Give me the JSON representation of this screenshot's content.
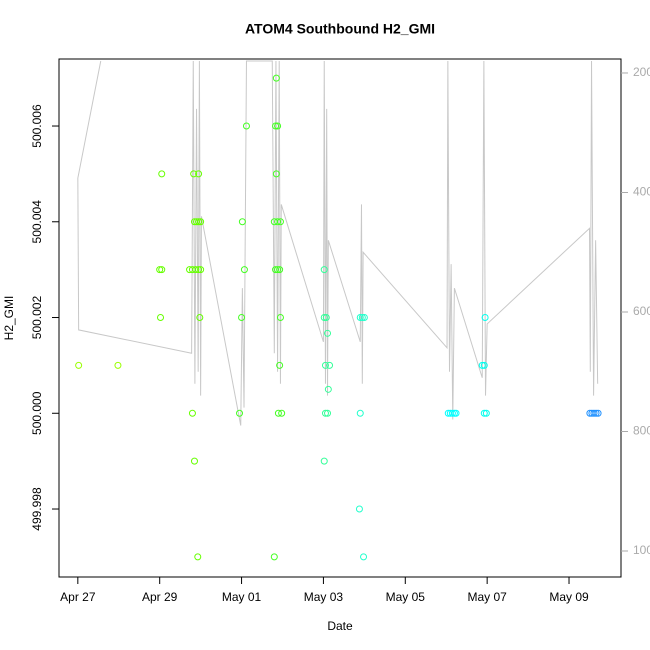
{
  "chart_data": {
    "type": "scatter",
    "title": "ATOM4 Southbound H2_GMI",
    "xlabel": "Date",
    "ylabel": "H2_GMI",
    "xlim": [
      -0.46,
      13.27
    ],
    "xticks": [
      {
        "value": 0,
        "label": "Apr 27"
      },
      {
        "value": 2,
        "label": "Apr 29"
      },
      {
        "value": 4,
        "label": "May 01"
      },
      {
        "value": 6,
        "label": "May 03"
      },
      {
        "value": 8,
        "label": "May 05"
      },
      {
        "value": 10,
        "label": "May 07"
      },
      {
        "value": 12,
        "label": "May 09"
      }
    ],
    "ylim": [
      499.99658,
      500.0074
    ],
    "yticks": [
      {
        "value": 499.998,
        "label": "499.998"
      },
      {
        "value": 500.0,
        "label": "500.000"
      },
      {
        "value": 500.002,
        "label": "500.002"
      },
      {
        "value": 500.004,
        "label": "500.004"
      },
      {
        "value": 500.006,
        "label": "500.006"
      }
    ],
    "y2lim": [
      1043.5,
      176.6
    ],
    "y2ticks": [
      200,
      400,
      600,
      800,
      1000
    ],
    "series": [
      {
        "mode": "line",
        "axis": "y2",
        "color": "#c8c8c8",
        "x": [
          0.56,
          0,
          0.02,
          2.78,
          2.82,
          2.86,
          2.9,
          2.94,
          2.97,
          3.0,
          3.02,
          3.98,
          4.02,
          4.06,
          4.12,
          4.75,
          4.8,
          4.84,
          4.88,
          4.92,
          4.95,
          4.97,
          6.0,
          6.02,
          6.05,
          6.08,
          6.1,
          6.12,
          6.9,
          6.93,
          6.95,
          6.97,
          9.02,
          9.04,
          9.08,
          9.12,
          9.16,
          9.2,
          9.88,
          9.92,
          9.96,
          10.0,
          12.5,
          12.52,
          12.55,
          12.6,
          12.65,
          12.7
        ],
        "values": [
          180,
          376,
          630,
          669,
          180,
          720,
          260,
          700,
          180,
          740,
          440,
          790,
          560,
          760,
          180,
          180,
          669,
          180,
          700,
          180,
          720,
          420,
          650,
          180,
          720,
          260,
          740,
          480,
          650,
          420,
          720,
          500,
          660,
          180,
          700,
          520,
          780,
          560,
          710,
          180,
          740,
          620,
          460,
          700,
          180,
          740,
          480,
          720
        ]
      },
      {
        "mode": "points",
        "color": "#99ff00",
        "x": [
          0.02,
          0.98
        ],
        "values": [
          500.001,
          500.001
        ]
      },
      {
        "mode": "points",
        "color": "#66ff00",
        "x": [
          2.05,
          2.0,
          2.05,
          2.02,
          2.8,
          2.85,
          2.83,
          2.95,
          2.85,
          2.9,
          2.95,
          3.0,
          2.73,
          2.8,
          2.88,
          2.95,
          3.0,
          2.98,
          2.93
        ],
        "values": [
          500.005,
          500.003,
          500.003,
          500.002,
          500.0,
          499.999,
          500.005,
          500.005,
          500.004,
          500.004,
          500.004,
          500.004,
          500.003,
          500.003,
          500.003,
          500.003,
          500.003,
          500.002,
          499.997
        ]
      },
      {
        "mode": "points",
        "color": "#44ff22",
        "x": [
          4.12,
          4.02,
          4.07,
          4.0,
          3.95,
          4.8,
          4.85,
          4.83,
          4.88,
          4.85,
          4.8,
          4.88,
          4.95,
          4.83,
          4.88,
          4.93,
          4.95,
          4.93,
          4.9,
          4.98
        ],
        "values": [
          500.006,
          500.004,
          500.003,
          500.002,
          500.0,
          499.997,
          500.007,
          500.006,
          500.006,
          500.005,
          500.004,
          500.004,
          500.004,
          500.003,
          500.003,
          500.003,
          500.002,
          500.001,
          500.0,
          500.0
        ]
      },
      {
        "mode": "points",
        "color": "#33ff99",
        "x": [
          6.02,
          6.02,
          6.07,
          6.1,
          6.05,
          6.15,
          6.12,
          6.05,
          6.1,
          6.02
        ],
        "values": [
          500.003,
          500.002,
          500.002,
          500.00167,
          500.001,
          500.001,
          500.0005,
          500.0,
          500.0,
          499.999
        ]
      },
      {
        "mode": "points",
        "color": "#22ffcc",
        "x": [
          6.9,
          6.95,
          7.0,
          6.9,
          6.88,
          6.98
        ],
        "values": [
          500.002,
          500.002,
          500.002,
          500.0,
          499.998,
          499.997
        ]
      },
      {
        "mode": "points",
        "color": "#00ffff",
        "x": [
          9.05,
          9.1,
          9.15,
          9.2,
          9.24
        ],
        "values": [
          500.0,
          500.0,
          500.0,
          500.0,
          500.0
        ]
      },
      {
        "mode": "points",
        "color": "#00ffee",
        "x": [
          9.88,
          9.93,
          9.95,
          9.93,
          9.98
        ],
        "values": [
          500.001,
          500.001,
          500.002,
          500.0,
          500.0
        ]
      },
      {
        "mode": "points",
        "color": "#1e90ff",
        "x": [
          12.51,
          12.56,
          12.61,
          12.66,
          12.71
        ],
        "values": [
          500.0,
          500.0,
          500.0,
          500.0,
          500.0
        ]
      }
    ]
  }
}
